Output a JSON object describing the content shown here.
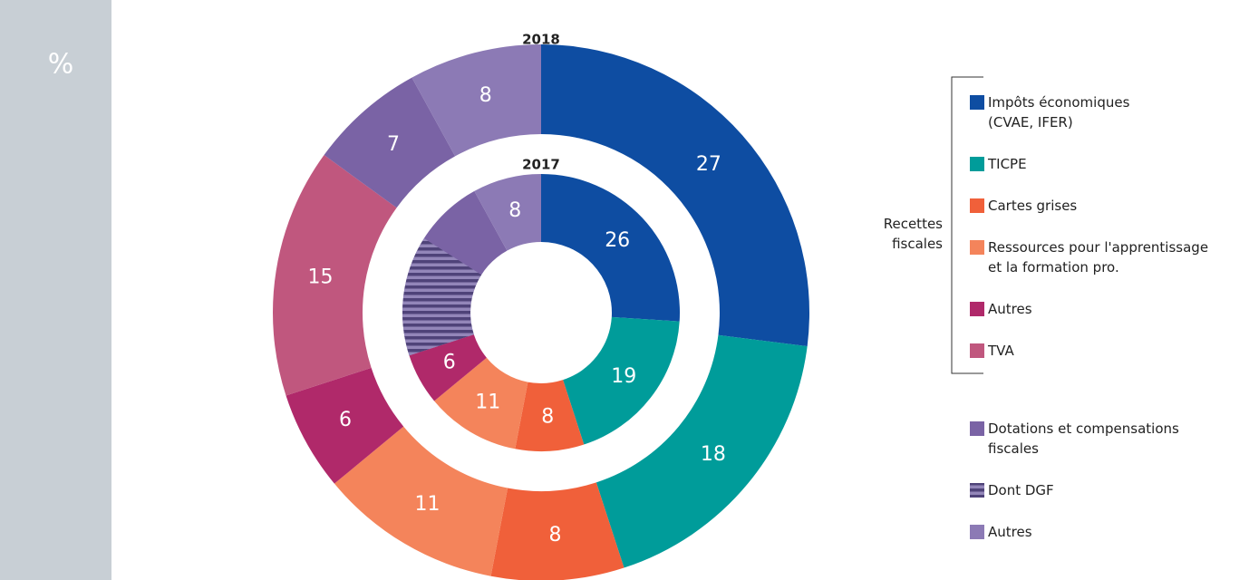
{
  "chart_data": {
    "type": "nested-donut",
    "unit_label": "%",
    "rings": [
      "2018",
      "2017"
    ],
    "groups": [
      {
        "label": "Recettes\nfiscales",
        "series": [
          {
            "name": "Impôts économiques\n(CVAE, IFER)",
            "color": "#0e4da2",
            "values": [
              27,
              26
            ]
          },
          {
            "name": "TICPE",
            "color": "#009c9a",
            "values": [
              18,
              19
            ]
          },
          {
            "name": "Cartes grises",
            "color": "#f0603a",
            "values": [
              8,
              8
            ]
          },
          {
            "name": "Ressources pour l'apprentissage\net la formation pro.",
            "color": "#f4845b",
            "values": [
              11,
              11
            ]
          },
          {
            "name": "Autres",
            "color": "#b0296a",
            "values": [
              6,
              6
            ]
          },
          {
            "name": "TVA",
            "color": "#c0577e",
            "values": [
              15,
              null
            ]
          }
        ]
      },
      {
        "series": [
          {
            "name": "Dotations et compensations\nfiscales",
            "color": "#7a63a5",
            "values": [
              7,
              22
            ]
          },
          {
            "name": "Dont DGF",
            "color": "#4f4379",
            "pattern": "stripes",
            "values": [
              null,
              14
            ]
          },
          {
            "name": "Autres",
            "color": "#8c7ab5",
            "values": [
              8,
              8
            ]
          }
        ]
      }
    ]
  }
}
